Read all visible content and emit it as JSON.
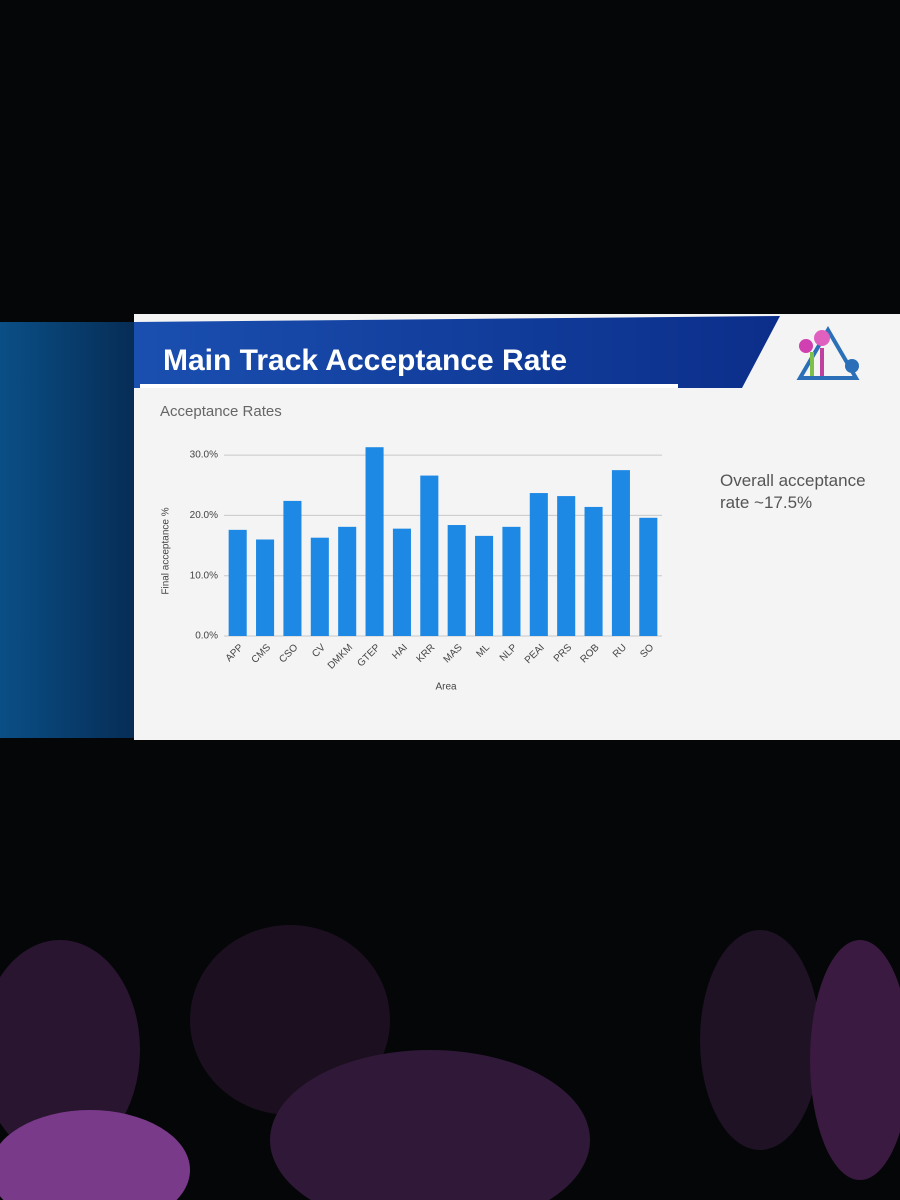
{
  "slide": {
    "title": "Main Track Acceptance Rate",
    "note": "Overall acceptance rate ~17.5%"
  },
  "chart_data": {
    "type": "bar",
    "title": "Acceptance Rates",
    "x_label": "Area",
    "y_label": "Final acceptance %",
    "categories": [
      "APP",
      "CMS",
      "CSO",
      "CV",
      "DMKM",
      "GTEP",
      "HAI",
      "KRR",
      "MAS",
      "ML",
      "NLP",
      "PEAI",
      "PRS",
      "ROB",
      "RU",
      "SO"
    ],
    "values": [
      17.6,
      16.0,
      22.4,
      16.3,
      18.1,
      31.3,
      17.8,
      26.6,
      18.4,
      16.6,
      18.1,
      23.7,
      23.2,
      21.4,
      27.5,
      19.6
    ],
    "color": "#1e88e5",
    "ylim": [
      0,
      32
    ],
    "yticks": [
      {
        "value": 0,
        "label": "0.0%"
      },
      {
        "value": 10,
        "label": "10.0%"
      },
      {
        "value": 20,
        "label": "20.0%"
      },
      {
        "value": 30,
        "label": "30.0%"
      }
    ],
    "grid": true
  }
}
